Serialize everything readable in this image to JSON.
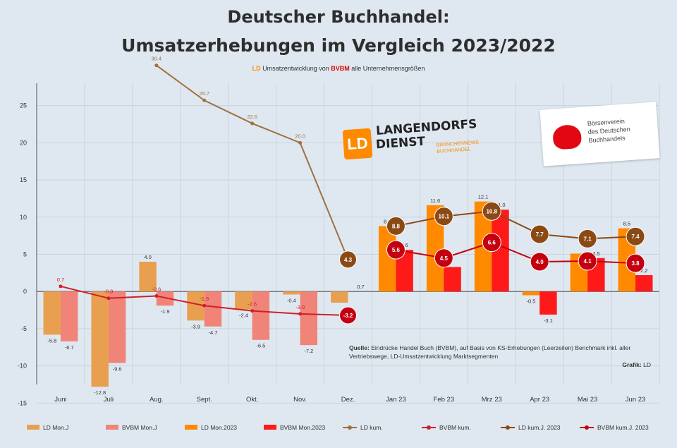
{
  "header": {
    "title_line1": "Deutscher Buchhandel:",
    "title_line2": "Umsatzerhebungen im Vergleich 2023/2022",
    "subtitle_part1": "LD",
    "subtitle_part2": "Umsatzentwicklung von",
    "subtitle_part3": "BVBM",
    "subtitle_part4": "alle Unternehmensgrößen"
  },
  "logos": {
    "langendorfs_box": "LD",
    "langendorfs_line1": "LANGENDORFS",
    "langendorfs_line2": "DIENST",
    "langendorfs_tag": "BRANCHENNEWS BUCHHANDEL",
    "boersenverein_line1": "Börsenverein",
    "boersenverein_line2": "des Deutschen",
    "boersenverein_line3": "Buchhandels"
  },
  "source": {
    "label": "Quelle:",
    "text": "Eindrücke Handel Buch (BVBM), auf Basis von KS-Erhebungen (Leerzeilen) Benchmark inkl. aller Vertriebswege, LD-Umsatzentwicklung Marktsegmenten",
    "grafik_label": "Grafik:",
    "grafik_value": "LD"
  },
  "colors": {
    "ld_mon_2022": "#e8a050",
    "bvbm_mon_2022": "#f08478",
    "ld_mon_2023": "#ff8a00",
    "bvbm_mon_2023": "#ff1a1a",
    "ld_kum": "#a0703f",
    "bvbm_kum": "#d0202a",
    "ld_kum_2023": "#8b4a14",
    "bvbm_kum_2023": "#c40010",
    "grid": "#c8d4de",
    "axis": "#555555"
  },
  "chart_data": {
    "type": "bar",
    "title": "Deutscher Buchhandel: Umsatzerhebungen im Vergleich 2023/2022",
    "categories": [
      "Juni",
      "Juli",
      "Aug.",
      "Sept.",
      "Okt.",
      "Nov.",
      "Dez.",
      "Jan 23",
      "Feb 23",
      "Mrz 23",
      "Apr 23",
      "Mai 23",
      "Jun 23"
    ],
    "yticks": [
      "25",
      "20",
      "15",
      "10",
      "5",
      "0",
      "-5",
      "-10",
      "-15"
    ],
    "ylim": [
      -12.5,
      28
    ],
    "bars": [
      {
        "name": "LD Mon.J",
        "values": [
          -5.8,
          -12.8,
          4.0,
          -3.9,
          -2.4,
          -0.4,
          -1.5,
          null,
          null,
          null,
          null,
          null,
          null
        ]
      },
      {
        "name": "BVBM Mon.J",
        "values": [
          -6.7,
          -9.6,
          -1.9,
          -4.7,
          -6.5,
          -7.2,
          null,
          null,
          null,
          null,
          null,
          null,
          null
        ]
      },
      {
        "name": "LD Mon.2023",
        "values": [
          null,
          null,
          null,
          null,
          null,
          null,
          null,
          8.8,
          11.6,
          12.1,
          -0.5,
          5.1,
          8.5
        ]
      },
      {
        "name": "BVBM Mon.2023",
        "values": [
          null,
          null,
          null,
          null,
          null,
          null,
          null,
          5.6,
          3.3,
          11.0,
          -3.1,
          4.5,
          2.2
        ]
      }
    ],
    "bar_labels": [
      [
        "-5.8",
        "-12.8",
        "4.0",
        "-3.9",
        "-2.4",
        "-0.4",
        "",
        "",
        "",
        "",
        "",
        "",
        ""
      ],
      [
        "-6.7",
        "-9.6",
        "-1.9",
        "-4.7",
        "-6.5",
        "-7.2",
        "",
        "",
        "",
        "",
        "",
        "",
        ""
      ],
      [
        "",
        "",
        "",
        "",
        "",
        "",
        "",
        "8.8",
        "11.6",
        "12.1",
        "-0.5",
        "",
        "8,5"
      ],
      [
        "",
        "",
        "",
        "",
        "",
        "",
        "",
        "5.6",
        "",
        "11.0",
        "-3.1",
        "4.5",
        "2,2"
      ]
    ],
    "lines": [
      {
        "name": "LD kum.",
        "values": [
          null,
          null,
          30.4,
          25.7,
          22.6,
          20.0,
          4.3,
          null,
          null,
          null,
          null,
          null,
          null
        ],
        "labels": [
          "",
          "",
          "30.4",
          "25.7",
          "22.6",
          "20.0",
          "",
          "",
          "",
          "",
          "",
          "",
          ""
        ]
      },
      {
        "name": "BVBM kum.",
        "values": [
          0.7,
          -0.9,
          -0.6,
          -1.9,
          -2.6,
          -3.0,
          -3.2,
          null,
          null,
          null,
          null,
          null,
          null
        ],
        "labels": [
          "0.7",
          "-0.9",
          "-0.6",
          "-1.9",
          "-2.6",
          "-3.0",
          "",
          "",
          "",
          "",
          "",
          "",
          ""
        ]
      },
      {
        "name": "LD kum.J. 2023",
        "values": [
          null,
          null,
          null,
          null,
          null,
          null,
          null,
          8.8,
          10.1,
          10.8,
          7.7,
          7.1,
          7.4
        ],
        "labels": [
          "",
          "",
          "",
          "",
          "",
          "",
          "",
          "8.8",
          "10.1",
          "10.8",
          "7.7",
          "7.1",
          "7.4"
        ]
      },
      {
        "name": "BVBM kum.J. 2023",
        "values": [
          null,
          null,
          null,
          null,
          null,
          null,
          null,
          5.6,
          4.5,
          6.6,
          4.0,
          4.1,
          3.8
        ],
        "labels": [
          "",
          "",
          "",
          "",
          "",
          "",
          "",
          "5.6",
          "4.5",
          "6.6",
          "4.0",
          "4.1",
          "3.8"
        ]
      }
    ],
    "standalone_labels": [
      {
        "category": "Dez.",
        "value": 0.7,
        "text": "0.7"
      },
      {
        "category": "Dez.",
        "value": 4.3,
        "text": "4.3"
      },
      {
        "category": "Dez.",
        "value": -3.2,
        "text": "-3.2"
      }
    ],
    "legend": [
      "LD Mon.J",
      "BVBM Mon.J",
      "LD Mon.2023",
      "BVBM Mon.2023",
      "LD kum.",
      "BVBM kum.",
      "LD kum.J. 2023",
      "BVBM kum.J. 2023"
    ],
    "legend_position": "bottom",
    "grid": true
  }
}
